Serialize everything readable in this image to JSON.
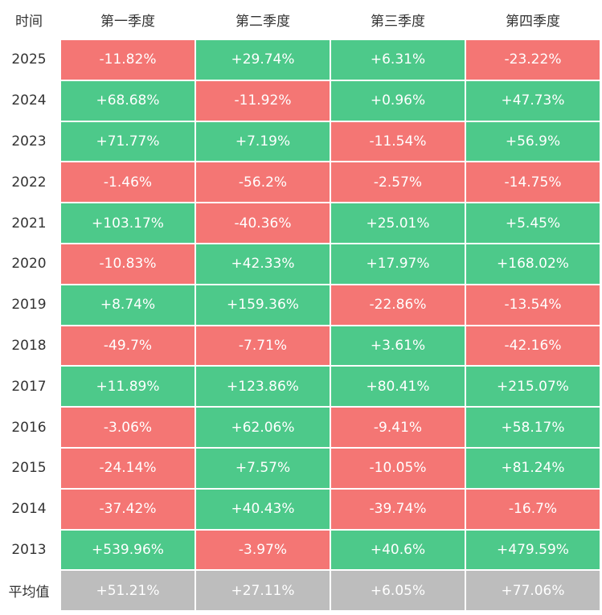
{
  "table": {
    "header": [
      "时间",
      "第一季度",
      "第二季度",
      "第三季度",
      "第四季度"
    ],
    "rows": [
      [
        "2025",
        "-11.82%",
        "+29.74%",
        "+6.31%",
        "-23.22%"
      ],
      [
        "2024",
        "+68.68%",
        "-11.92%",
        "+0.96%",
        "+47.73%"
      ],
      [
        "2023",
        "+71.77%",
        "+7.19%",
        "-11.54%",
        "+56.9%"
      ],
      [
        "2022",
        "-1.46%",
        "-56.2%",
        "-2.57%",
        "-14.75%"
      ],
      [
        "2021",
        "+103.17%",
        "-40.36%",
        "+25.01%",
        "+5.45%"
      ],
      [
        "2020",
        "-10.83%",
        "+42.33%",
        "+17.97%",
        "+168.02%"
      ],
      [
        "2019",
        "+8.74%",
        "+159.36%",
        "-22.86%",
        "-13.54%"
      ],
      [
        "2018",
        "-49.7%",
        "-7.71%",
        "+3.61%",
        "-42.16%"
      ],
      [
        "2017",
        "+11.89%",
        "+123.86%",
        "+80.41%",
        "+215.07%"
      ],
      [
        "2016",
        "-3.06%",
        "+62.06%",
        "-9.41%",
        "+58.17%"
      ],
      [
        "2015",
        "-24.14%",
        "+7.57%",
        "-10.05%",
        "+81.24%"
      ],
      [
        "2014",
        "-37.42%",
        "+40.43%",
        "-39.74%",
        "-16.7%"
      ],
      [
        "2013",
        "+539.96%",
        "-3.97%",
        "+40.6%",
        "+479.59%"
      ],
      [
        "平均值",
        "+51.21%",
        "+27.11%",
        "+6.05%",
        "+77.06%"
      ]
    ]
  }
}
